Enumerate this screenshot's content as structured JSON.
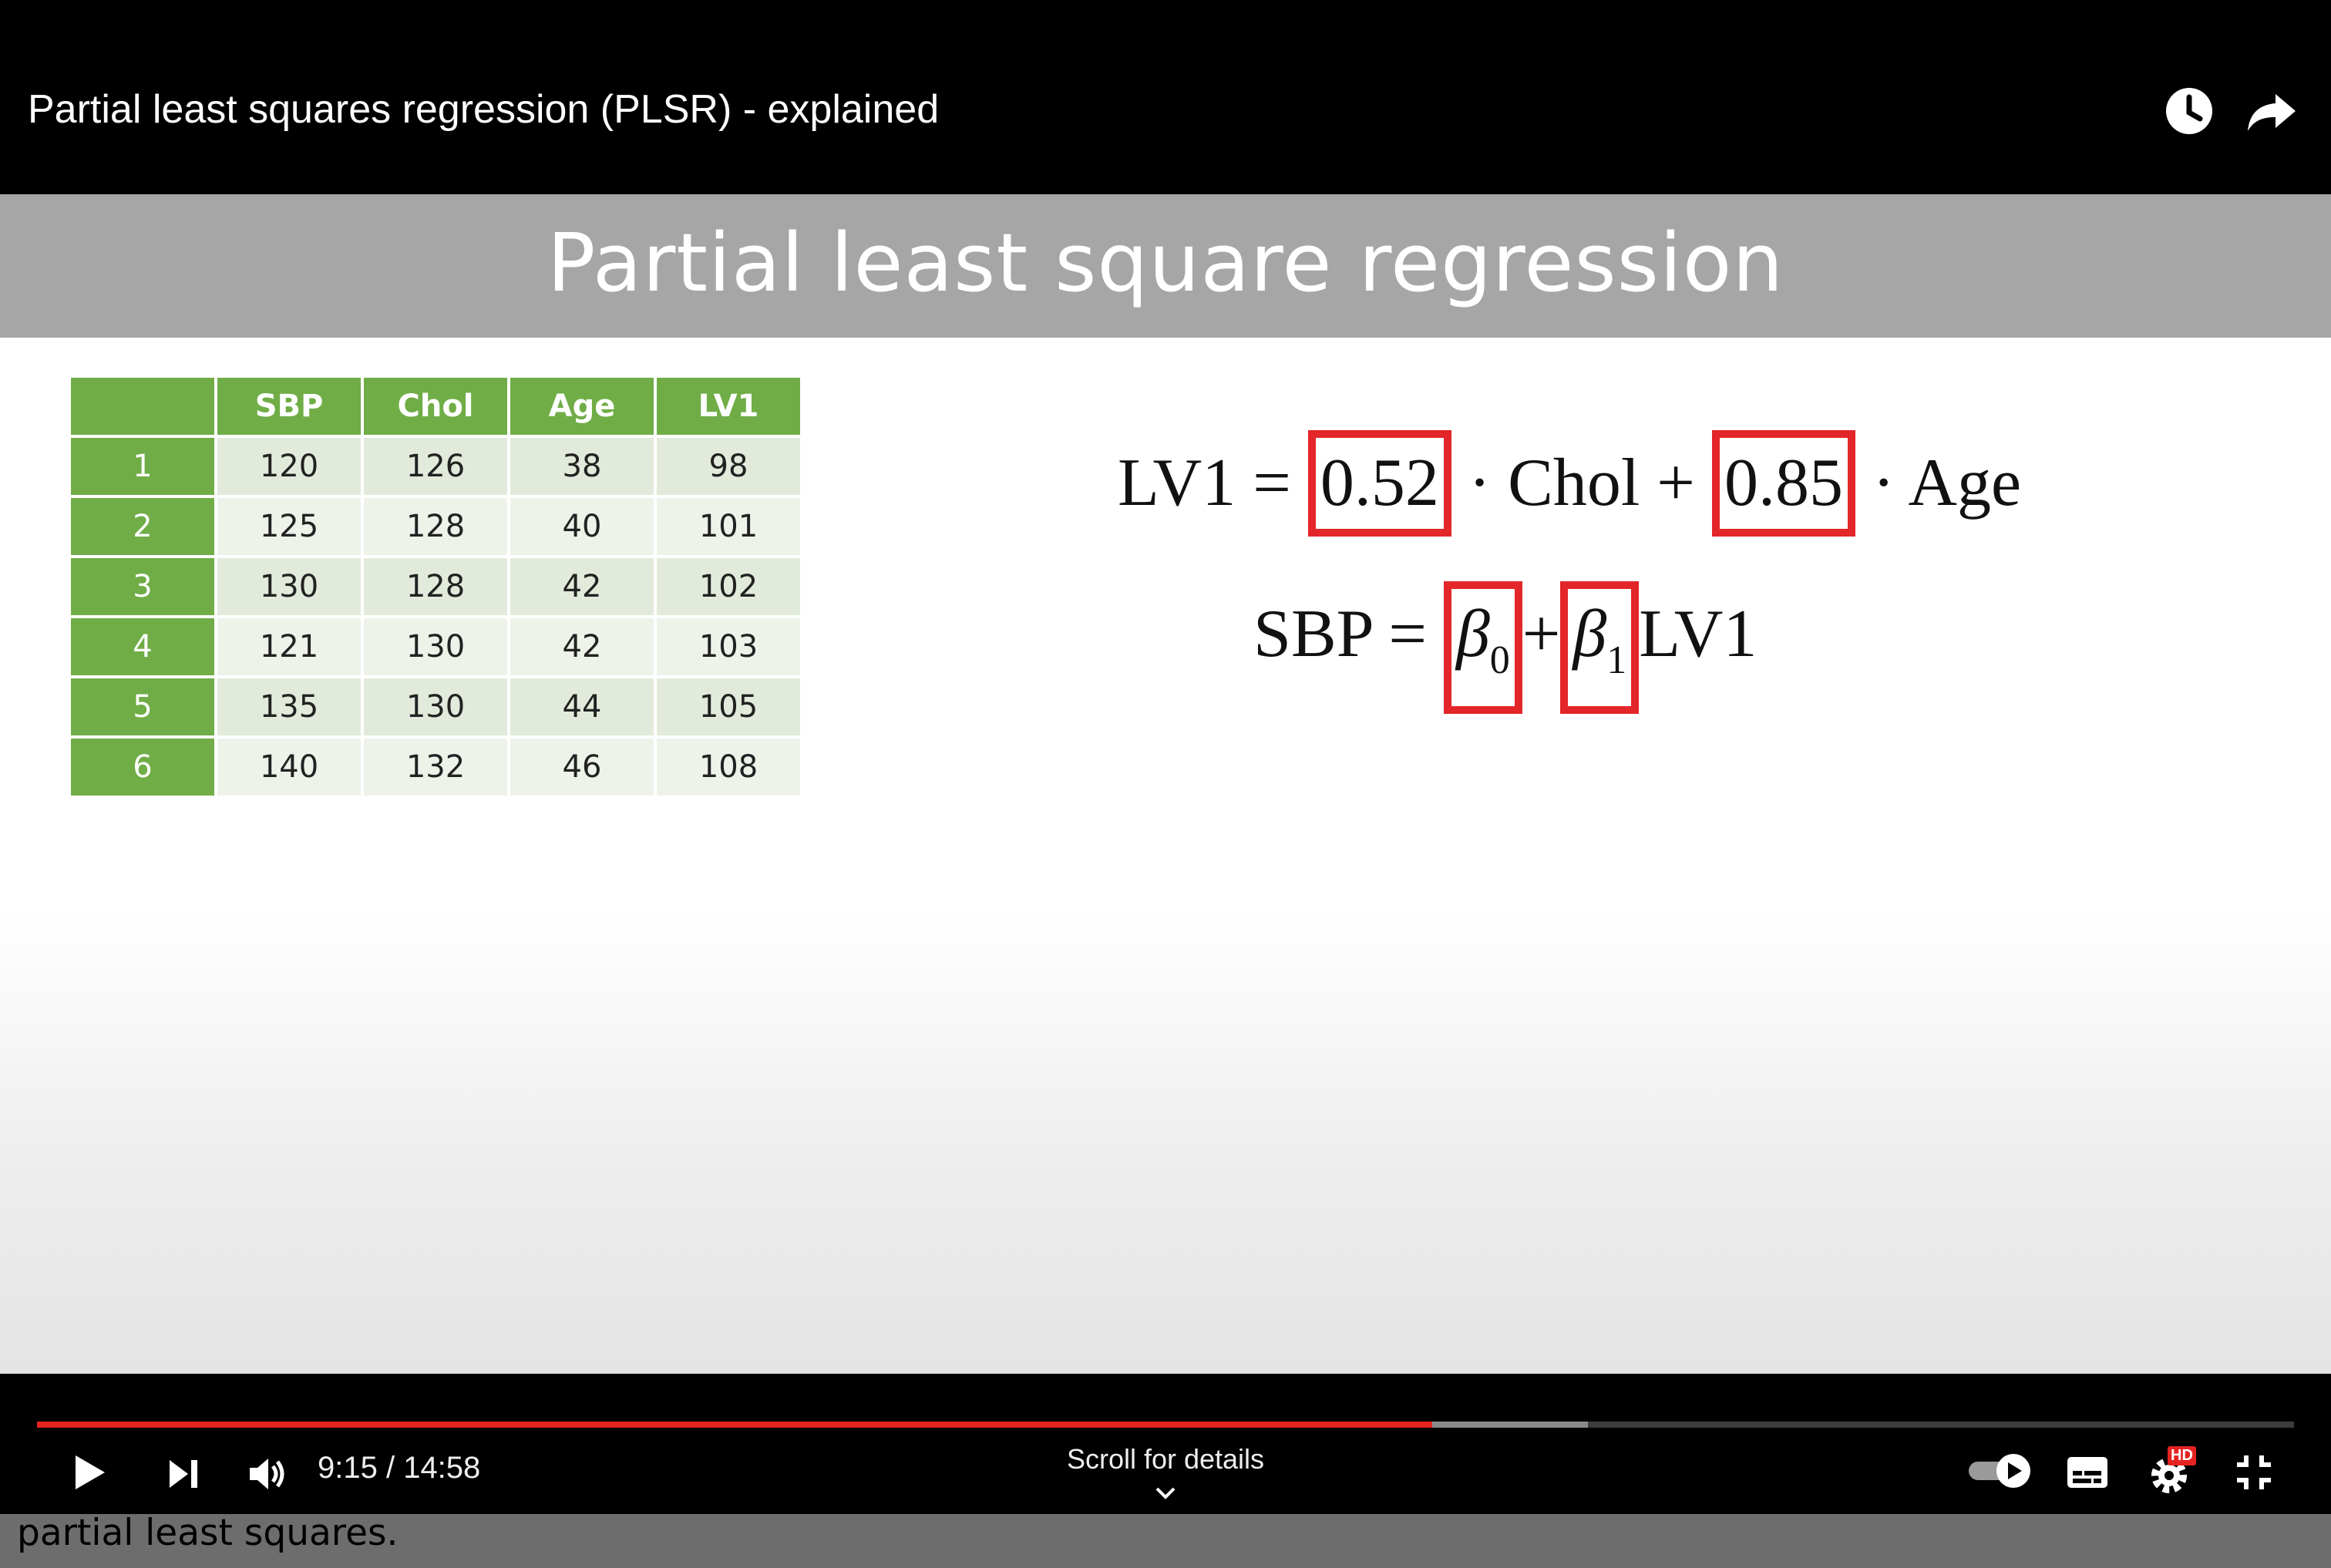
{
  "header": {
    "video_title": "Partial least squares regression (PLSR) - explained",
    "icons": [
      "clock-icon",
      "share-icon"
    ]
  },
  "slide": {
    "title": "Partial least square regression",
    "table": {
      "columns": [
        "",
        "SBP",
        "Chol",
        "Age",
        "LV1"
      ],
      "rows": [
        [
          "1",
          "120",
          "126",
          "38",
          "98"
        ],
        [
          "2",
          "125",
          "128",
          "40",
          "101"
        ],
        [
          "3",
          "130",
          "128",
          "42",
          "102"
        ],
        [
          "4",
          "121",
          "130",
          "42",
          "103"
        ],
        [
          "5",
          "135",
          "130",
          "44",
          "105"
        ],
        [
          "6",
          "140",
          "132",
          "46",
          "108"
        ]
      ]
    },
    "equation1": {
      "lhs": "LV1 =",
      "coef1": "0.52",
      "term1": "· Chol +",
      "coef2": "0.85",
      "term2": "· Age"
    },
    "equation2": {
      "lhs": "SBP =",
      "beta0": "β",
      "beta0_sub": "0",
      "plus": "+",
      "beta1": "β",
      "beta1_sub": "1",
      "term": "LV1"
    },
    "caption": "Since only two out of the four coefficients are estimated by the least square method, this explains why the method is called partial least squares."
  },
  "player": {
    "current_time": "9:15",
    "duration": "14:58",
    "time_display": "9:15 / 14:58",
    "played_fraction": 0.618,
    "buffered_fraction": 0.687,
    "scroll_hint": "Scroll for details",
    "hd_badge": "HD",
    "accent_color": "#e52320"
  }
}
